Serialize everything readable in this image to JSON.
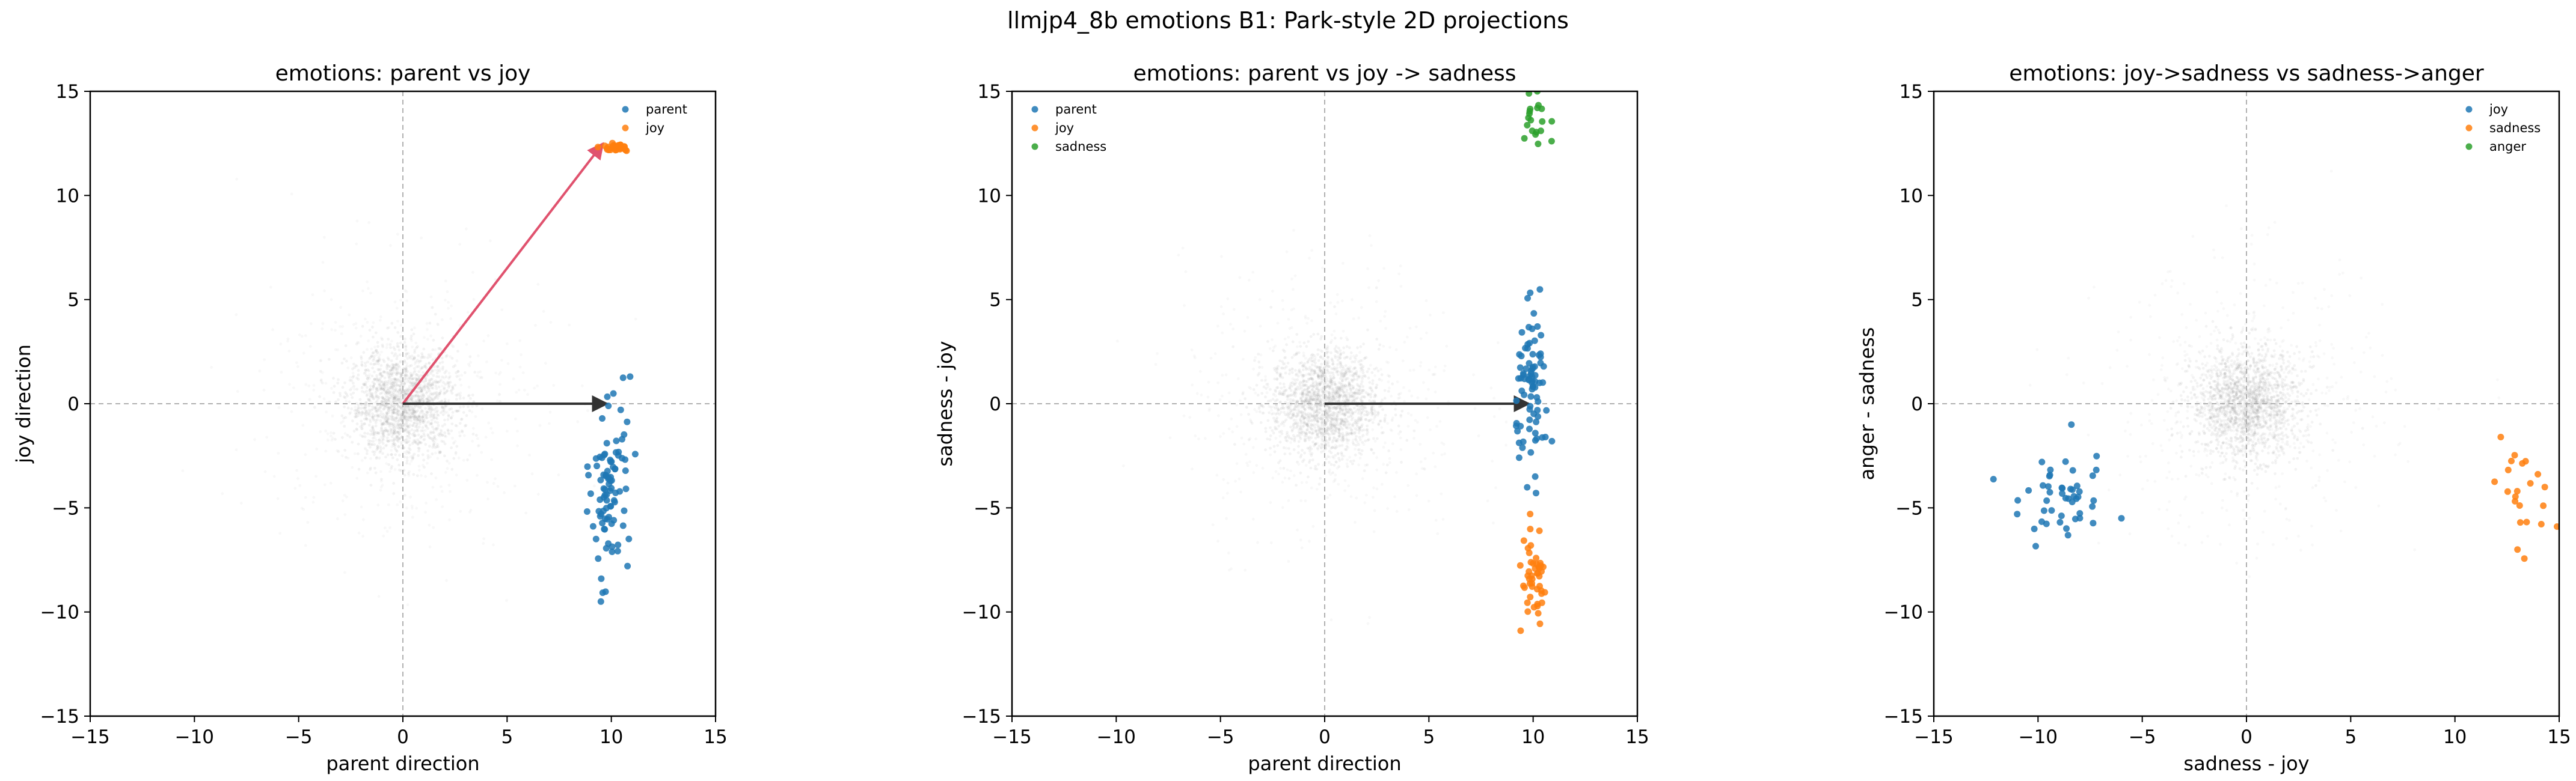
{
  "suptitle": "llmjp4_8b emotions B1: Park-style 2D projections",
  "colors": {
    "blue": "#1f77b4",
    "orange": "#ff7f0e",
    "green": "#2ca02c",
    "arrow_red": "#e0526e",
    "arrow_dark": "#333333",
    "cloud": "#7f7f7f"
  },
  "chart_data": [
    {
      "type": "scatter",
      "title": "emotions: parent vs joy",
      "xlabel": "parent direction",
      "ylabel": "joy direction",
      "xlim": [
        -15,
        15
      ],
      "ylim": [
        -15,
        15
      ],
      "ticks": [
        -15,
        -10,
        -5,
        0,
        5,
        10,
        15
      ],
      "grid": false,
      "reference_lines": [
        0,
        0
      ],
      "legend": "top-right",
      "background_cloud": {
        "center": [
          0,
          0
        ],
        "spread": 1.3
      },
      "arrows": [
        {
          "from": [
            0,
            0
          ],
          "to": [
            9.6,
            12.5
          ],
          "color": "#e0526e"
        },
        {
          "from": [
            0,
            0
          ],
          "to": [
            9.8,
            0
          ],
          "color": "#333333"
        }
      ],
      "series": [
        {
          "name": "parent",
          "color": "#1f77b4",
          "center": [
            9.9,
            -4.2
          ],
          "spread": [
            0.45,
            2.0
          ],
          "n": 90,
          "extra_points": [
            [
              10.9,
              1.3
            ],
            [
              9.5,
              -9.5
            ]
          ]
        },
        {
          "name": "joy",
          "color": "#ff7f0e",
          "center": [
            10.2,
            12.3
          ],
          "spread": [
            0.35,
            0.12
          ],
          "n": 30,
          "extra_points": []
        }
      ]
    },
    {
      "type": "scatter",
      "title": "emotions: parent vs joy -> sadness",
      "xlabel": "parent direction",
      "ylabel": "sadness - joy",
      "xlim": [
        -15,
        15
      ],
      "ylim": [
        -15,
        15
      ],
      "ticks": [
        -15,
        -10,
        -5,
        0,
        5,
        10,
        15
      ],
      "grid": false,
      "reference_lines": [
        0,
        0
      ],
      "legend": "top-left",
      "background_cloud": {
        "center": [
          0,
          0
        ],
        "spread": 1.3
      },
      "arrows": [
        {
          "from": [
            0,
            0
          ],
          "to": [
            9.8,
            0
          ],
          "color": "#333333"
        }
      ],
      "series": [
        {
          "name": "parent",
          "color": "#1f77b4",
          "center": [
            10.0,
            0.6
          ],
          "spread": [
            0.4,
            1.8
          ],
          "n": 80,
          "extra_points": [
            [
              10.9,
              -1.8
            ],
            [
              10.1,
              -3.5
            ]
          ]
        },
        {
          "name": "joy",
          "color": "#ff7f0e",
          "center": [
            10.0,
            -8.6
          ],
          "spread": [
            0.35,
            1.0
          ],
          "n": 45,
          "extra_points": [
            [
              10.3,
              -6.1
            ],
            [
              9.4,
              -10.9
            ]
          ]
        },
        {
          "name": "sadness",
          "color": "#2ca02c",
          "center": [
            10.1,
            13.2
          ],
          "spread": [
            0.35,
            0.9
          ],
          "n": 18,
          "extra_points": [
            [
              9.8,
              14.9
            ],
            [
              10.2,
              15.0
            ]
          ]
        }
      ]
    },
    {
      "type": "scatter",
      "title": "emotions: joy->sadness vs sadness->anger",
      "xlabel": "sadness - joy",
      "ylabel": "anger - sadness",
      "xlim": [
        -15,
        15
      ],
      "ylim": [
        -15,
        15
      ],
      "ticks": [
        -15,
        -10,
        -5,
        0,
        5,
        10,
        15
      ],
      "grid": false,
      "reference_lines": [
        0,
        0
      ],
      "legend": "top-right",
      "background_cloud": {
        "center": [
          0,
          0
        ],
        "spread": 1.3
      },
      "arrows": [],
      "series": [
        {
          "name": "joy",
          "color": "#1f77b4",
          "center": [
            -8.8,
            -4.7
          ],
          "spread": [
            1.1,
            0.9
          ],
          "n": 45,
          "extra_points": [
            [
              -8.4,
              -1.0
            ],
            [
              -11.0,
              -5.3
            ],
            [
              -6.0,
              -5.5
            ]
          ]
        },
        {
          "name": "sadness",
          "color": "#ff7f0e",
          "center": [
            13.6,
            -4.2
          ],
          "spread": [
            0.8,
            1.1
          ],
          "n": 20,
          "extra_points": [
            [
              12.2,
              -1.6
            ],
            [
              13.0,
              -7.0
            ],
            [
              14.9,
              -5.9
            ]
          ]
        },
        {
          "name": "anger",
          "color": "#2ca02c",
          "center": [
            17,
            0
          ],
          "spread": [
            0.5,
            0.5
          ],
          "n": 0,
          "extra_points": []
        }
      ]
    }
  ]
}
